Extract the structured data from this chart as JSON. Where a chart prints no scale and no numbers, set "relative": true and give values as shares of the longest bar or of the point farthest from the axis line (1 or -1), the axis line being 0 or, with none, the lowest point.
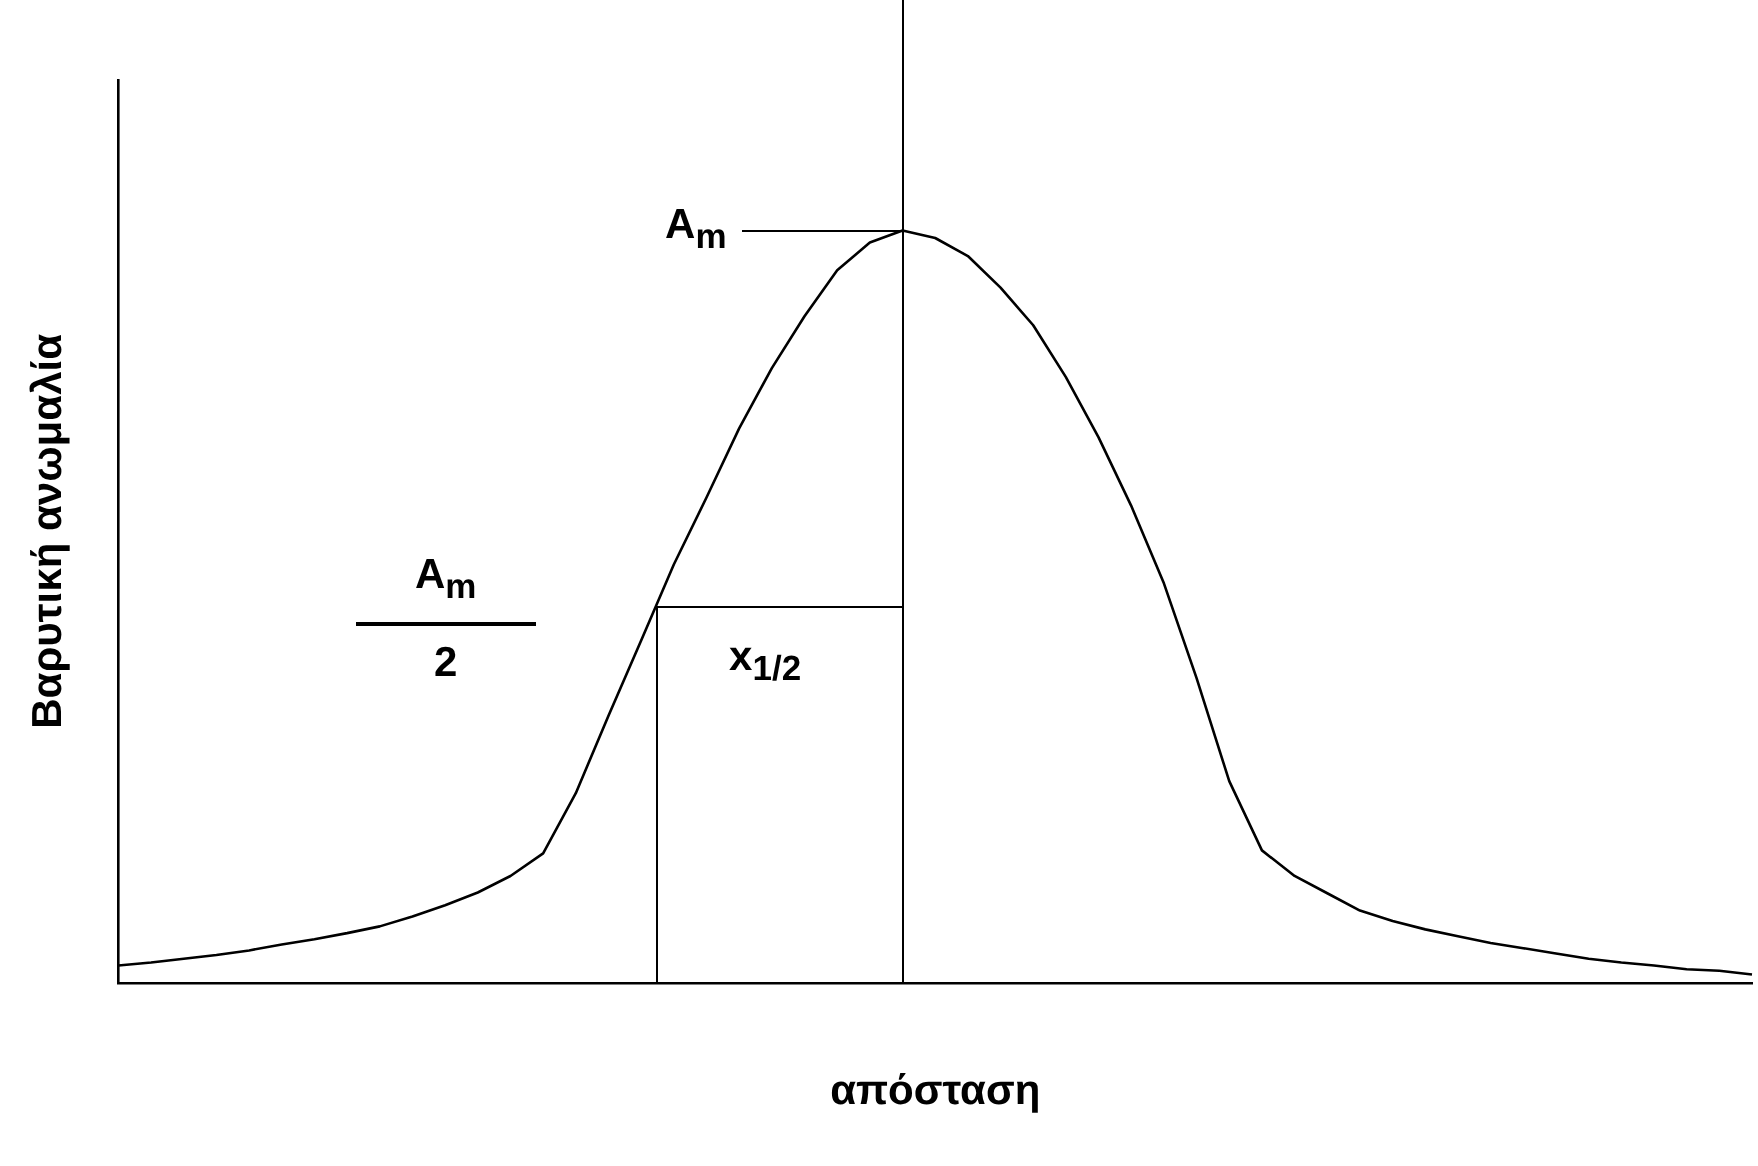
{
  "chart_data": {
    "type": "line",
    "relative": true,
    "xlabel": "απόσταση",
    "ylabel": "Βαρυτική ανωμαλία",
    "categories": [
      null,
      null,
      null,
      null,
      null,
      null,
      null,
      null,
      null,
      null,
      null,
      null,
      null,
      null,
      null,
      null,
      null,
      null,
      null,
      null,
      null,
      null,
      null,
      null,
      null,
      null,
      null,
      null,
      null,
      null,
      null,
      null,
      null,
      null,
      null,
      null,
      null,
      null,
      null,
      null,
      null,
      null,
      null,
      null,
      null,
      null,
      null,
      null,
      null,
      null,
      null
    ],
    "series": [
      {
        "color": "#000000",
        "values": [
          0.023,
          0.027,
          0.032,
          0.037,
          0.043,
          0.051,
          0.058,
          0.066,
          0.075,
          0.088,
          0.103,
          0.12,
          0.142,
          0.172,
          0.252,
          0.355,
          0.455,
          0.556,
          0.645,
          0.737,
          0.817,
          0.886,
          0.947,
          0.984,
          1,
          0.99,
          0.966,
          0.924,
          0.874,
          0.805,
          0.725,
          0.634,
          0.531,
          0.405,
          0.268,
          0.176,
          0.142,
          0.119,
          0.096,
          0.082,
          0.071,
          0.062,
          0.053,
          0.046,
          0.039,
          0.032,
          0.027,
          0.023,
          0.018,
          0.016,
          0.011
        ]
      }
    ],
    "annotations": [
      "A$_{m}$",
      "A$_{m}$\n2",
      "x$_{1/2}$"
    ]
  }
}
